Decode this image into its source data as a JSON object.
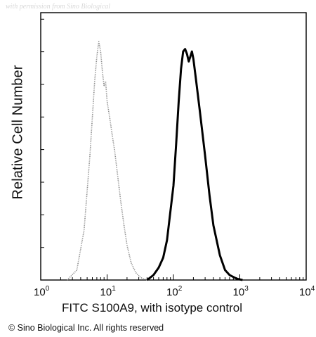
{
  "watermark": "with permission from Sino Biological",
  "copyright": "© Sino Biological Inc. All rights reserved",
  "chart_data": {
    "type": "area",
    "title": "",
    "xlabel": "FITC  S100A9,  with isotype control",
    "ylabel": "Relative Cell Number",
    "x_scale": "log",
    "xlim": [
      1,
      10000
    ],
    "ylim": [
      0,
      1
    ],
    "x_ticks": [
      {
        "value": 1,
        "base": "10",
        "exp": "0"
      },
      {
        "value": 10,
        "base": "10",
        "exp": "1"
      },
      {
        "value": 100,
        "base": "10",
        "exp": "2"
      },
      {
        "value": 1000,
        "base": "10",
        "exp": "3"
      },
      {
        "value": 10000,
        "base": "10",
        "exp": "4"
      }
    ],
    "grid": false,
    "legend": "none",
    "series": [
      {
        "style": "dotted-gray",
        "color": "#8a8a8a",
        "x": [
          2.5,
          3.5,
          4.5,
          5.5,
          6.5,
          7.0,
          7.5,
          8.0,
          8.5,
          9.0,
          9.5,
          10,
          11,
          12,
          13,
          14,
          16,
          18,
          20,
          23,
          27,
          32,
          40
        ],
        "y": [
          0.0,
          0.04,
          0.2,
          0.5,
          0.8,
          0.9,
          0.96,
          0.92,
          0.84,
          0.78,
          0.8,
          0.72,
          0.65,
          0.58,
          0.52,
          0.45,
          0.32,
          0.22,
          0.14,
          0.07,
          0.03,
          0.01,
          0.0
        ]
      },
      {
        "style": "solid-black",
        "color": "#000000",
        "x": [
          40,
          50,
          60,
          70,
          80,
          100,
          110,
          120,
          130,
          140,
          150,
          160,
          170,
          180,
          190,
          200,
          220,
          250,
          300,
          350,
          400,
          500,
          600,
          700,
          900,
          1100
        ],
        "y": [
          0.0,
          0.02,
          0.05,
          0.09,
          0.16,
          0.38,
          0.55,
          0.72,
          0.85,
          0.92,
          0.93,
          0.91,
          0.88,
          0.9,
          0.92,
          0.89,
          0.8,
          0.68,
          0.5,
          0.34,
          0.22,
          0.1,
          0.04,
          0.02,
          0.005,
          0.0
        ]
      }
    ]
  }
}
